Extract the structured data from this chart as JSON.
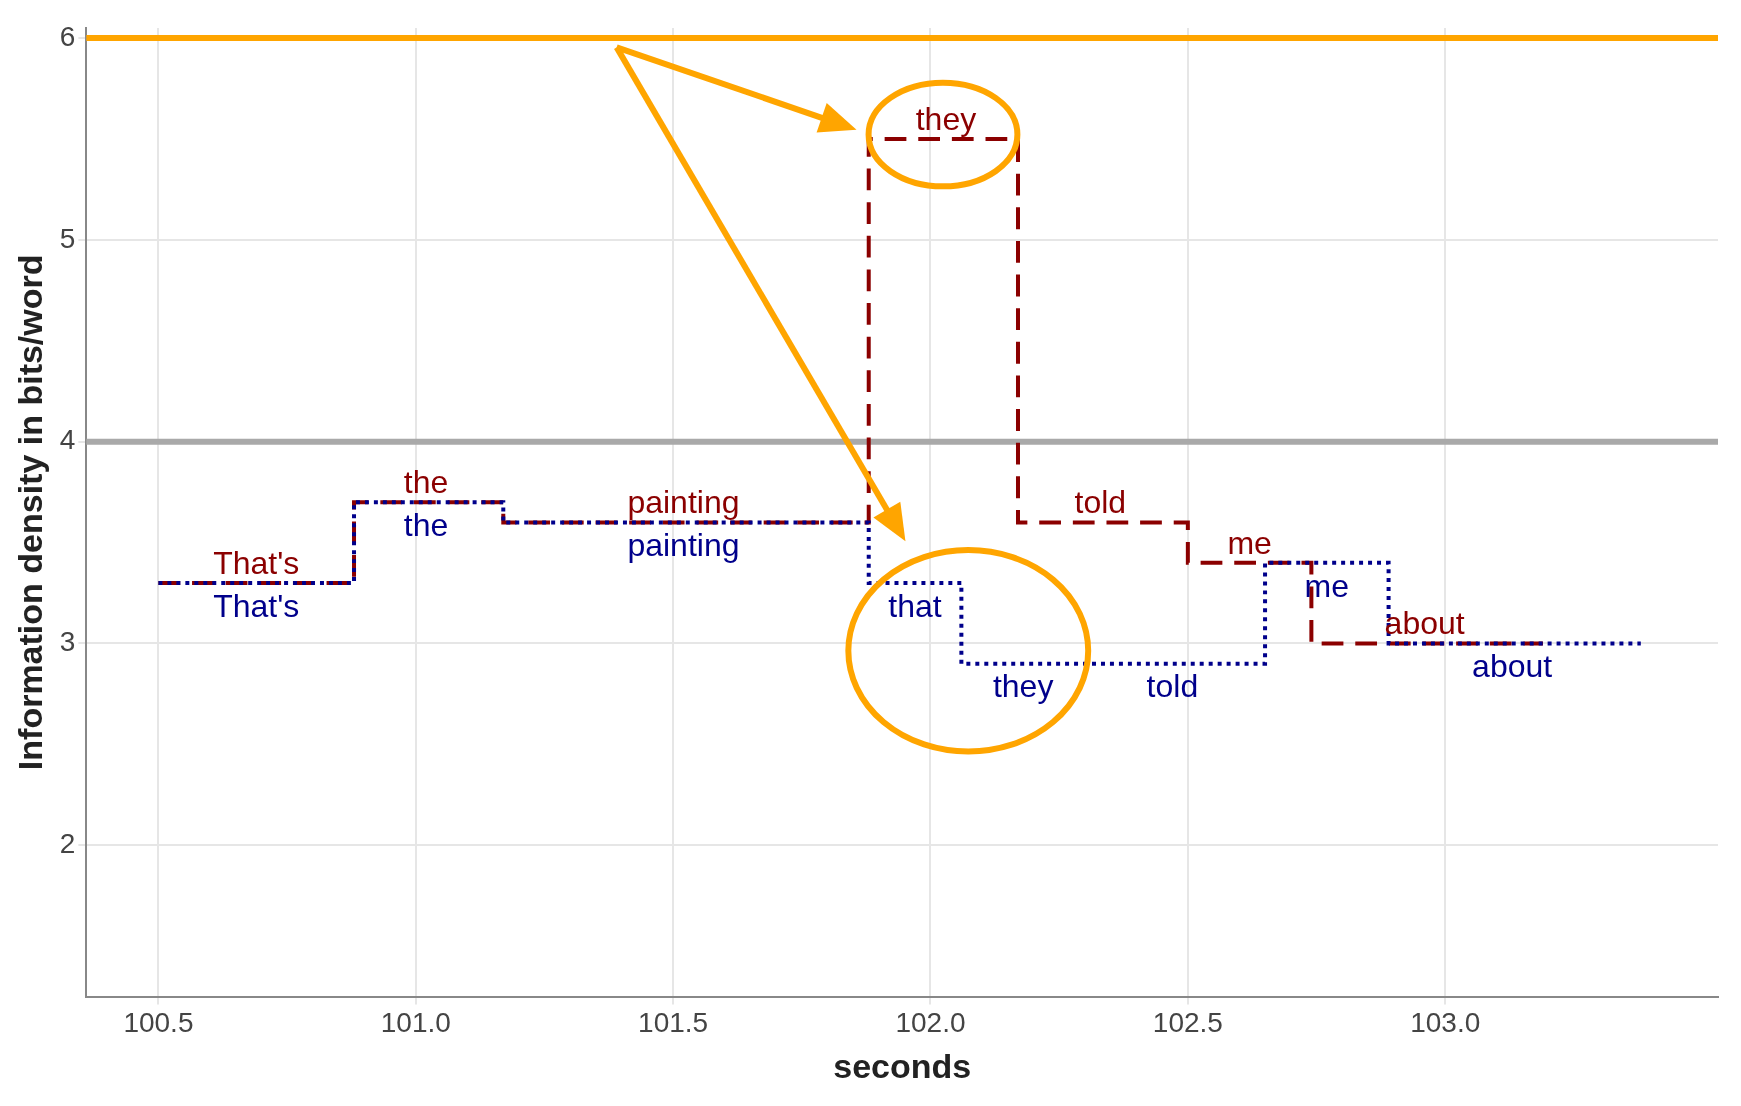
{
  "chart_data": {
    "type": "step",
    "xlabel": "seconds",
    "ylabel": "Information density in bits/word",
    "xlim": [
      100.36,
      103.53
    ],
    "ylim": [
      1.25,
      6.05
    ],
    "xticks": [
      100.5,
      {
        "value": 101,
        "label": "101.0"
      },
      101.5,
      {
        "value": 102,
        "label": "102.0"
      },
      102.5,
      {
        "value": 103,
        "label": "103.0"
      }
    ],
    "yticks": [
      2,
      3,
      4,
      5,
      6
    ],
    "grid": true,
    "legend": false,
    "ref_lines": [
      {
        "axis": "y",
        "value": 4,
        "color": "#a9a9a9"
      },
      {
        "axis": "y",
        "value": 6,
        "color": "#ffa500"
      }
    ],
    "series": [
      {
        "color": "#8b0000",
        "line_style": "dashed",
        "x": [
          100.5,
          100.69,
          100.88,
          101.02,
          101.17,
          101.52,
          101.88,
          102.03,
          102.17,
          102.33,
          102.5,
          102.62,
          102.74,
          102.96,
          103.19
        ],
        "values": [
          3.3,
          3.3,
          3.7,
          3.7,
          3.6,
          3.6,
          5.5,
          5.5,
          3.6,
          3.6,
          3.4,
          3.4,
          3.0,
          3.0,
          3.0
        ],
        "value_labels": [
          null,
          "That's",
          null,
          "the",
          null,
          "painting",
          null,
          "they",
          null,
          "told",
          null,
          "me",
          null,
          "about",
          null
        ]
      },
      {
        "color": "#00008b",
        "line_style": "dotted",
        "x": [
          100.5,
          100.69,
          100.88,
          101.02,
          101.17,
          101.52,
          101.88,
          101.97,
          102.06,
          102.18,
          102.47,
          102.65,
          102.77,
          102.89,
          103.13,
          103.38
        ],
        "values": [
          3.3,
          3.3,
          3.7,
          3.7,
          3.6,
          3.6,
          3.3,
          3.3,
          2.9,
          2.9,
          2.9,
          3.4,
          3.4,
          3.0,
          3.0,
          3.0
        ],
        "value_labels": [
          null,
          "That's",
          null,
          "the",
          null,
          "painting",
          null,
          "that",
          null,
          "they",
          "told",
          null,
          "me",
          null,
          "about",
          null
        ]
      }
    ]
  }
}
